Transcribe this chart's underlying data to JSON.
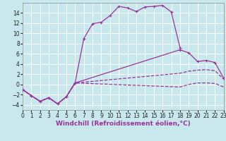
{
  "bg_color": "#c8e8ee",
  "grid_color": "#ffffff",
  "line_color": "#993399",
  "xlabel": "Windchill (Refroidissement éolien,°C)",
  "xlabel_fontsize": 6.5,
  "tick_fontsize": 5.5,
  "xlim": [
    0,
    23
  ],
  "ylim": [
    -5,
    16
  ],
  "yticks": [
    -4,
    -2,
    0,
    2,
    4,
    6,
    8,
    10,
    12,
    14
  ],
  "xticks": [
    0,
    1,
    2,
    3,
    4,
    5,
    6,
    7,
    8,
    9,
    10,
    11,
    12,
    13,
    14,
    15,
    16,
    17,
    18,
    19,
    20,
    21,
    22,
    23
  ],
  "series": [
    {
      "x": [
        0,
        1,
        2,
        3,
        4,
        5,
        6,
        7,
        8,
        9,
        10,
        11,
        12,
        13,
        14,
        15,
        16,
        17,
        18
      ],
      "y": [
        -1.0,
        -2.2,
        -3.3,
        -2.6,
        -3.8,
        -2.4,
        0.3,
        9.0,
        11.9,
        12.2,
        13.5,
        15.3,
        15.0,
        14.3,
        15.2,
        15.3,
        15.5,
        14.2,
        7.2
      ],
      "linestyle": "-",
      "marker": true
    },
    {
      "x": [
        0,
        1,
        2,
        3,
        4,
        5,
        6,
        18,
        19,
        20,
        21,
        22,
        23
      ],
      "y": [
        -1.0,
        -2.2,
        -3.3,
        -2.6,
        -3.8,
        -2.4,
        0.3,
        6.8,
        6.2,
        4.5,
        4.7,
        4.3,
        1.2
      ],
      "linestyle": "-",
      "marker": true
    },
    {
      "x": [
        0,
        1,
        2,
        3,
        4,
        5,
        6,
        18,
        19,
        20,
        21,
        22,
        23
      ],
      "y": [
        -1.0,
        -2.2,
        -3.3,
        -2.6,
        -3.8,
        -2.4,
        0.3,
        2.2,
        2.6,
        2.8,
        2.9,
        2.7,
        1.0
      ],
      "linestyle": "--",
      "marker": false
    },
    {
      "x": [
        0,
        1,
        2,
        3,
        4,
        5,
        6,
        18,
        19,
        20,
        21,
        22,
        23
      ],
      "y": [
        -1.0,
        -2.2,
        -3.3,
        -2.6,
        -3.8,
        -2.4,
        0.3,
        -0.5,
        0.0,
        0.3,
        0.3,
        0.2,
        -0.5
      ],
      "linestyle": "--",
      "marker": false
    }
  ]
}
